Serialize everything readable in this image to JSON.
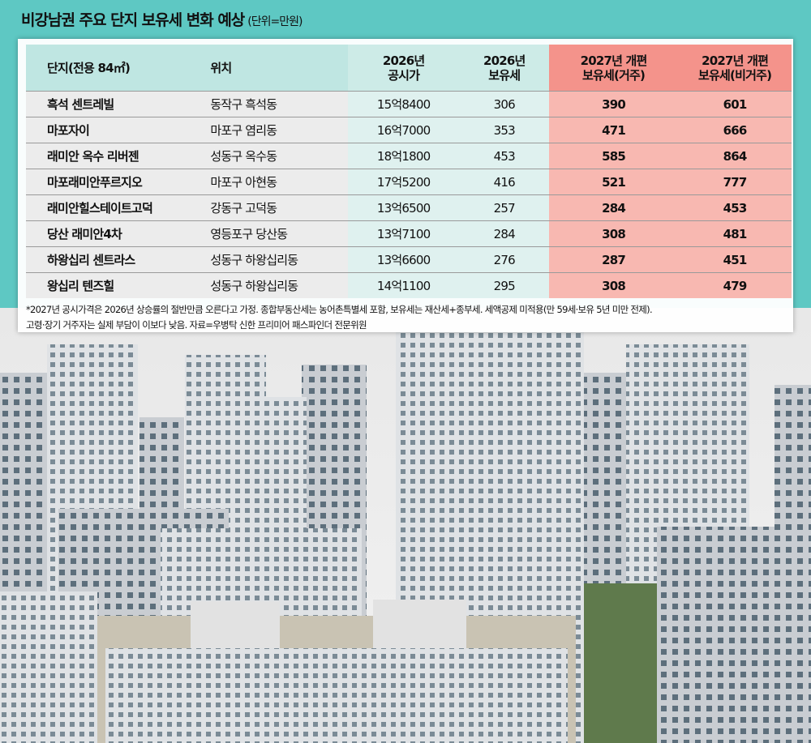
{
  "header": {
    "title": "비강남권 주요 단지 보유세 변화 예상",
    "unit": "(단위=만원)"
  },
  "table": {
    "columns": [
      "단지(전용 84㎡)",
      "위치",
      "2026년\n공시가",
      "2026년\n보유세",
      "2027년 개편\n보유세(거주)",
      "2027년 개편\n보유세(비거주)"
    ],
    "rows": [
      [
        "흑석 센트레빌",
        "동작구 흑석동",
        "15억8400",
        306,
        390,
        601
      ],
      [
        "마포자이",
        "마포구 염리동",
        "16억7000",
        353,
        471,
        666
      ],
      [
        "래미안 옥수 리버젠",
        "성동구 옥수동",
        "18억1800",
        453,
        585,
        864
      ],
      [
        "마포래미안푸르지오",
        "마포구 아현동",
        "17억5200",
        416,
        521,
        777
      ],
      [
        "래미안힐스테이트고덕",
        "강동구 고덕동",
        "13억6500",
        257,
        284,
        453
      ],
      [
        "당산 래미안4차",
        "영등포구 당산동",
        "13억7100",
        284,
        308,
        481
      ],
      [
        "하왕십리 센트라스",
        "성동구 하왕십리동",
        "13억6600",
        276,
        287,
        451
      ],
      [
        "왕십리 텐즈힐",
        "성동구 하왕십리동",
        "14억1100",
        295,
        308,
        479
      ]
    ]
  },
  "footnote": [
    "*2027년 공시가격은 2026년 상승률의 절반만큼 오른다고 가정. 종합부동산세는 농어촌특별세 포함, 보유세는 재산세+종부세. 세액공제 미적용(만 59세·보유 5년 미만 전제).",
    "고령·장기 거주자는 실제 부담이 이보다 낮음. 자료=우병탁 신한 프리미어 패스파인더 전문위원"
  ]
}
